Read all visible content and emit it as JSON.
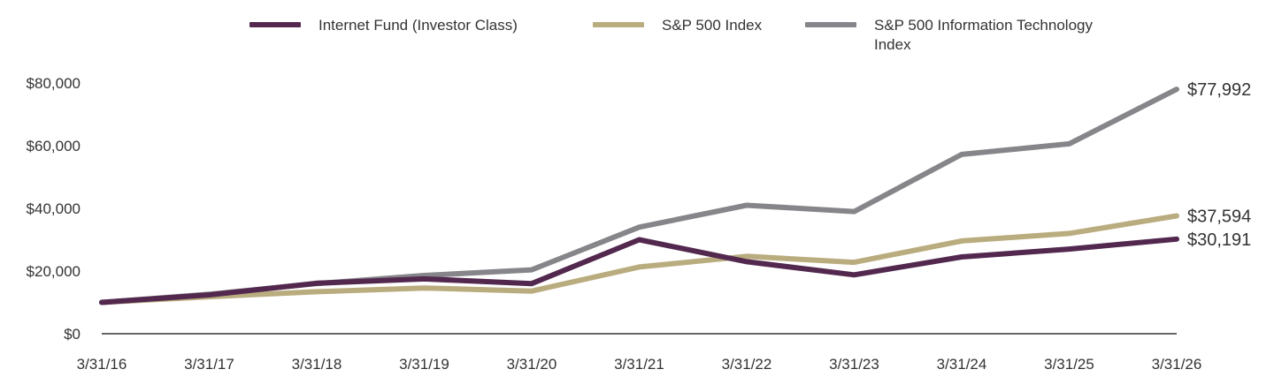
{
  "chart_data": {
    "type": "line",
    "title": "",
    "xlabel": "",
    "ylabel": "",
    "categories": [
      "3/31/16",
      "3/31/17",
      "3/31/18",
      "3/31/19",
      "3/31/20",
      "3/31/21",
      "3/31/22",
      "3/31/23",
      "3/31/24",
      "3/31/25",
      "3/31/26"
    ],
    "ylim": [
      0,
      80000
    ],
    "y_ticks": [
      0,
      20000,
      40000,
      60000,
      80000
    ],
    "y_tick_labels": [
      "$0",
      "$20,000",
      "$40,000",
      "$60,000",
      "$80,000"
    ],
    "grid": false,
    "legend_position": "top",
    "series": [
      {
        "name": "Internet Fund (Investor Class)",
        "color": "#53284f",
        "values": [
          10000,
          12400,
          16100,
          17500,
          16000,
          30000,
          23000,
          18800,
          24500,
          27000,
          30191
        ],
        "end_label": "$30,191"
      },
      {
        "name": "S&P 500 Index",
        "color": "#b9ac7e",
        "values": [
          10000,
          11800,
          13400,
          14600,
          13600,
          21300,
          24700,
          22800,
          29600,
          32000,
          37594
        ],
        "end_label": "$37,594"
      },
      {
        "name": "S&P 500 Information Technology Index",
        "color": "#86868a",
        "values": [
          10000,
          12600,
          16000,
          18600,
          20400,
          34000,
          41000,
          39000,
          57200,
          60600,
          77992
        ],
        "end_label": "$77,992"
      }
    ]
  }
}
